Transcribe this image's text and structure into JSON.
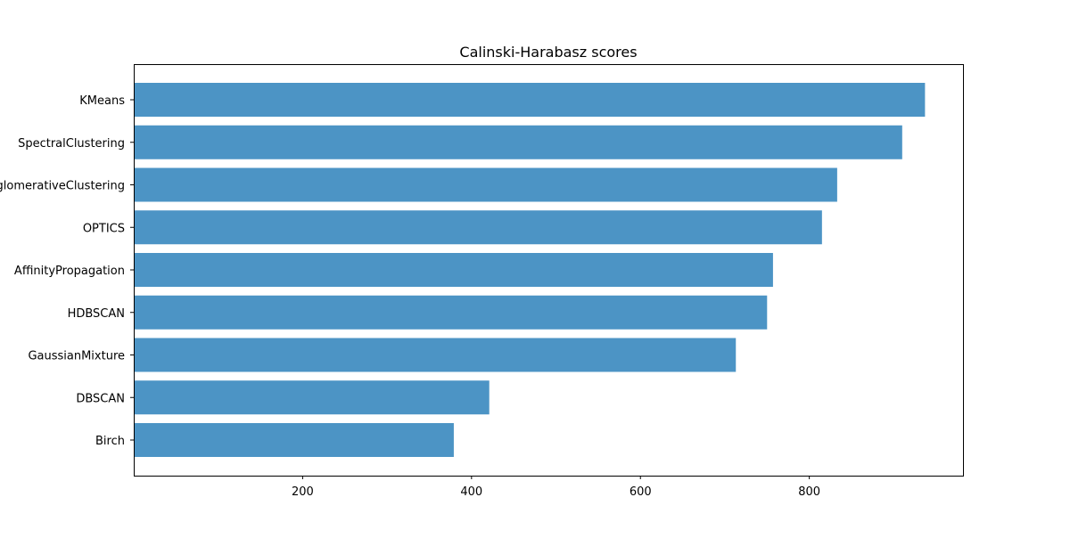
{
  "chart_data": {
    "type": "bar",
    "orientation": "horizontal",
    "title": "Calinski-Harabasz scores",
    "xlabel": "",
    "ylabel": "",
    "categories": [
      "KMeans",
      "SpectralClustering",
      "AgglomerativeClustering",
      "OPTICS",
      "AffinityPropagation",
      "HDBSCAN",
      "GaussianMixture",
      "DBSCAN",
      "Birch"
    ],
    "values": [
      937,
      910,
      833,
      815,
      757,
      750,
      713,
      421,
      379
    ],
    "xlim": [
      0,
      982
    ],
    "xticks": [
      200,
      400,
      600,
      800
    ],
    "grid": false,
    "bar_color": "#4c94c5"
  }
}
